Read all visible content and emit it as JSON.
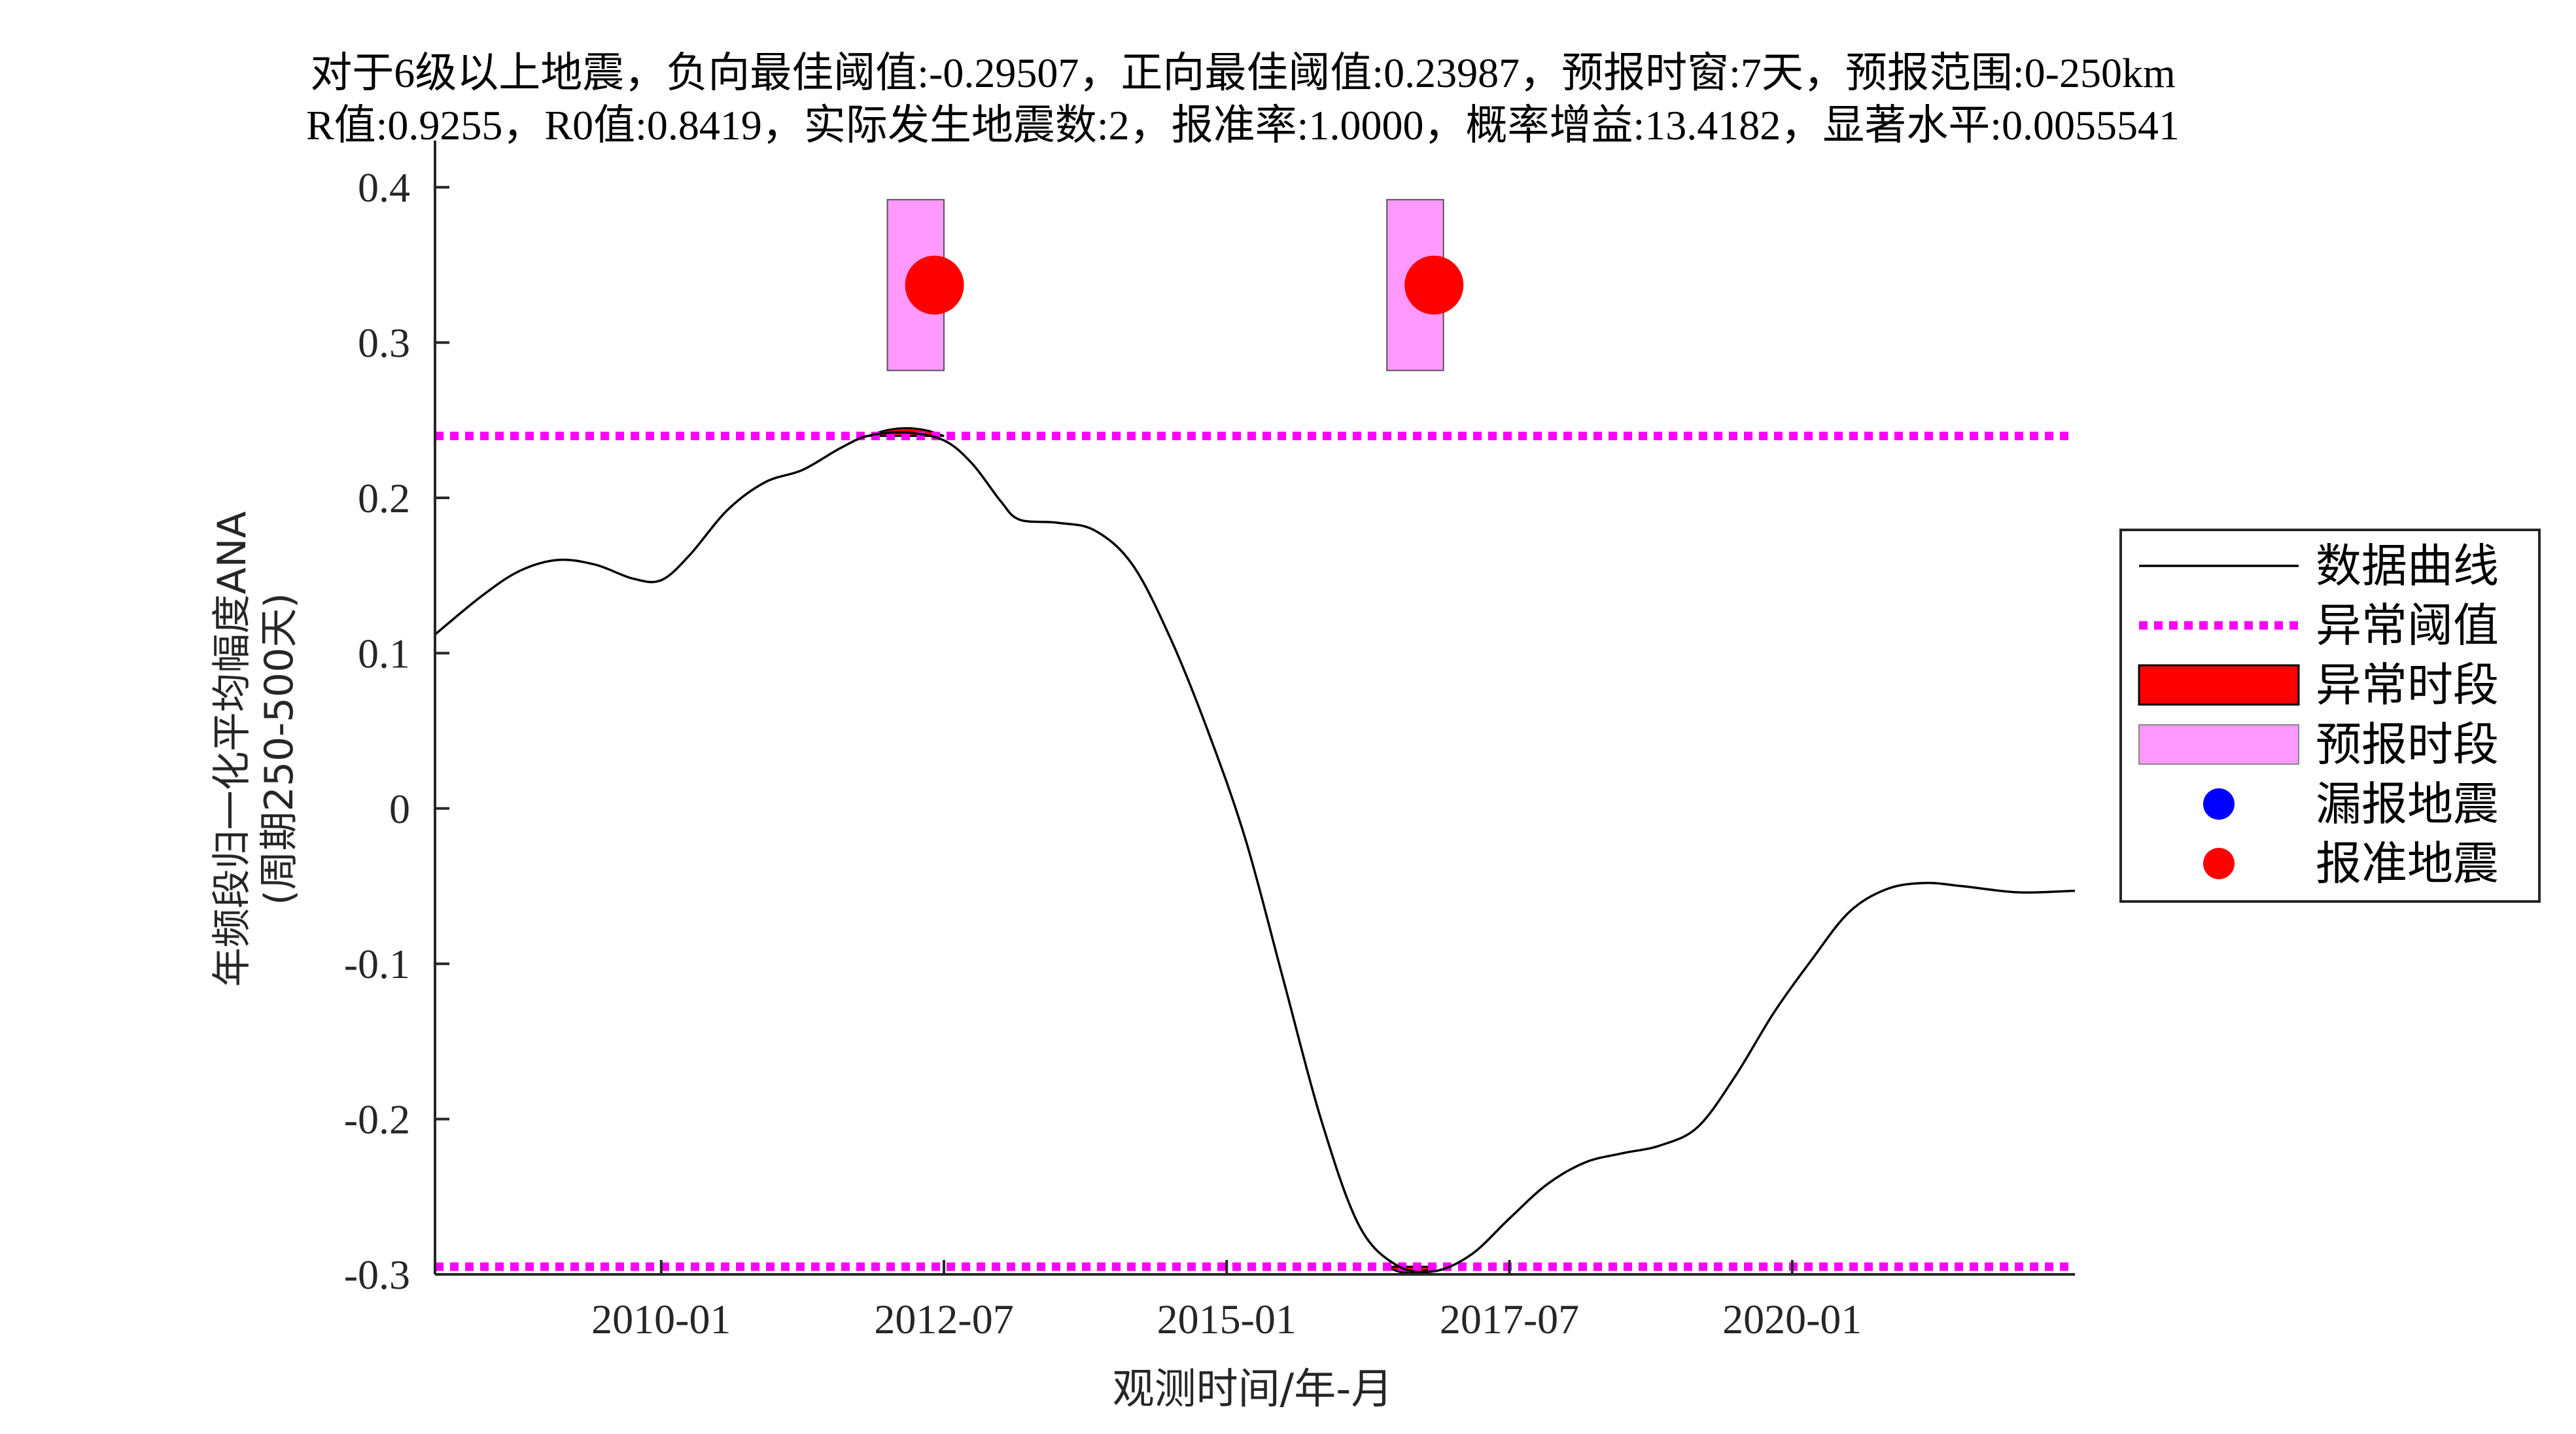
{
  "chart_data": {
    "type": "line",
    "title_lines": [
      "对于6级以上地震，负向最佳阈值:-0.29507，正向最佳阈值:0.23987，预报时窗:7天，预报范围:0-250km",
      "R值:0.9255，R0值:0.8419，实际发生地震数:2，报准率:1.0000，概率增益:13.4182，显著水平:0.0055541"
    ],
    "xlabel": "观测时间/年-月",
    "ylabel_lines": [
      "年频段归一化平均幅度ANA",
      "(周期250-500天)"
    ],
    "x_range": [
      "2008-01",
      "2022-07"
    ],
    "ylim": [
      -0.3,
      0.43
    ],
    "x_ticks": [
      {
        "value": "2010-01",
        "label": "2010-01"
      },
      {
        "value": "2012-07",
        "label": "2012-07"
      },
      {
        "value": "2015-01",
        "label": "2015-01"
      },
      {
        "value": "2017-07",
        "label": "2017-07"
      },
      {
        "value": "2020-01",
        "label": "2020-01"
      }
    ],
    "y_ticks": [
      0.4,
      0.3,
      0.2,
      0.1,
      0,
      -0.1,
      -0.2,
      -0.3
    ],
    "y_tick_labels": [
      "0.4",
      "0.3",
      "0.2",
      "0.1",
      "0",
      "-0.1",
      "-0.2",
      "-0.3"
    ],
    "series": [
      {
        "name": "数据曲线",
        "color": "#000000",
        "points": [
          [
            "2008-01",
            0.112
          ],
          [
            "2008-06",
            0.137
          ],
          [
            "2008-10",
            0.153
          ],
          [
            "2009-02",
            0.16
          ],
          [
            "2009-06",
            0.157
          ],
          [
            "2009-10",
            0.148
          ],
          [
            "2010-01",
            0.147
          ],
          [
            "2010-04",
            0.163
          ],
          [
            "2010-08",
            0.192
          ],
          [
            "2010-12",
            0.21
          ],
          [
            "2011-04",
            0.218
          ],
          [
            "2011-08",
            0.232
          ],
          [
            "2011-11",
            0.24
          ],
          [
            "2012-03",
            0.242
          ],
          [
            "2012-07",
            0.237
          ],
          [
            "2012-10",
            0.222
          ],
          [
            "2013-01",
            0.198
          ],
          [
            "2013-03",
            0.186
          ],
          [
            "2013-07",
            0.184
          ],
          [
            "2013-11",
            0.179
          ],
          [
            "2014-03",
            0.157
          ],
          [
            "2014-07",
            0.11
          ],
          [
            "2014-11",
            0.05
          ],
          [
            "2015-03",
            -0.02
          ],
          [
            "2015-07",
            -0.11
          ],
          [
            "2015-11",
            -0.2
          ],
          [
            "2016-03",
            -0.268
          ],
          [
            "2016-07",
            -0.294
          ],
          [
            "2016-11",
            -0.298
          ],
          [
            "2017-03",
            -0.287
          ],
          [
            "2017-07",
            -0.264
          ],
          [
            "2017-11",
            -0.242
          ],
          [
            "2018-03",
            -0.228
          ],
          [
            "2018-07",
            -0.222
          ],
          [
            "2018-11",
            -0.217
          ],
          [
            "2019-03",
            -0.205
          ],
          [
            "2019-07",
            -0.172
          ],
          [
            "2019-11",
            -0.132
          ],
          [
            "2020-03",
            -0.098
          ],
          [
            "2020-07",
            -0.067
          ],
          [
            "2020-11",
            -0.052
          ],
          [
            "2021-03",
            -0.048
          ],
          [
            "2021-07",
            -0.05
          ],
          [
            "2022-01",
            -0.054
          ],
          [
            "2022-07",
            -0.053
          ]
        ]
      }
    ],
    "thresholds": {
      "name": "异常阈值",
      "color": "#ff00ff",
      "values": [
        0.23987,
        -0.29507
      ]
    },
    "anomaly_periods": {
      "name": "异常时段",
      "color": "#ff0000",
      "ranges": [
        [
          "2011-11",
          "2012-07"
        ],
        [
          "2016-06",
          "2016-11"
        ]
      ]
    },
    "forecast_periods": {
      "name": "预报时段",
      "color": "#ff99ff",
      "ranges": [
        [
          "2012-01",
          "2012-07"
        ],
        [
          "2016-06",
          "2016-12"
        ]
      ],
      "y_range": [
        0.282,
        0.392
      ]
    },
    "earthquakes_hit": {
      "name": "报准地震",
      "color": "#ff0000",
      "points": [
        [
          "2012-06",
          0.337
        ],
        [
          "2016-11",
          0.337
        ]
      ]
    },
    "earthquakes_missed": {
      "name": "漏报地震",
      "color": "#0000ff",
      "points": []
    },
    "legend": {
      "position": "right",
      "entries": [
        "数据曲线",
        "异常阈值",
        "异常时段",
        "预报时段",
        "漏报地震",
        "报准地震"
      ]
    }
  }
}
